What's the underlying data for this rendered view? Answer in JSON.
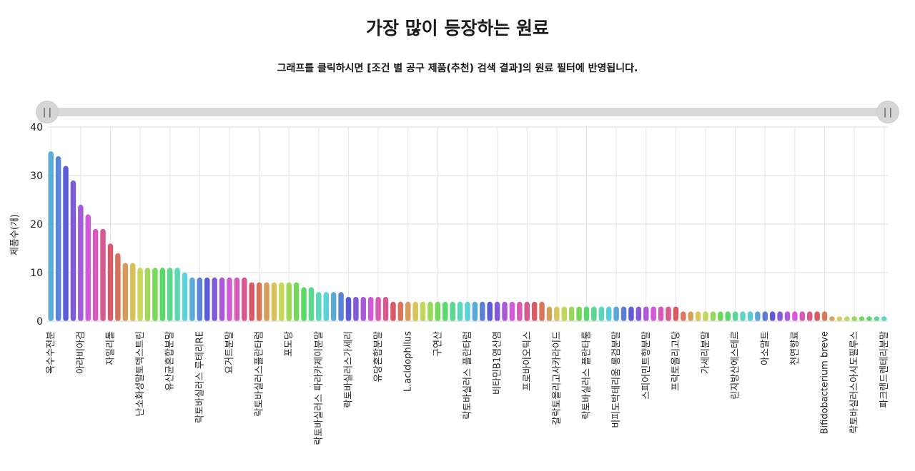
{
  "page": {
    "title": "가장 많이 등장하는 원료",
    "subtitle": "그래프를 클릭하시면 [조건 별 공구 제품(추천) 검색 결과]의 원료 필터에 반영됩니다."
  },
  "slider": {
    "left_handle_label": "||",
    "right_handle_label": "||"
  },
  "chart_data": {
    "type": "bar",
    "title": "가장 많이 등장하는 원료",
    "ylabel": "제품수(개)",
    "xlabel": "",
    "ylim": [
      0,
      40
    ],
    "yticks": [
      0,
      10,
      20,
      30,
      40
    ],
    "grid": true,
    "legend": "none",
    "visible_category_labels": [
      "옥수수전분",
      "아라비아검",
      "자일리톨",
      "난소화성말토덱스트린",
      "유산균혼합분말",
      "락토바실러스 루테리RE",
      "요거트분말",
      "락토바실러스플란타럼",
      "포도당",
      "락토바실러스 파라카제이분말",
      "락토바실러스가세리",
      "유당혼합분말",
      "L.acidophilus",
      "구연산",
      "락토바실러스 플란타럼",
      "비타민B1염산염",
      "프로바이오틱스",
      "갈락토올리고사카라이드",
      "락토바실러스 플란타룸",
      "비피도박테리움 롱검분말",
      "스피어민트향분말",
      "프락토올리고당",
      "가세리분말",
      "린지방산에스테르",
      "아소말트",
      "천연향료",
      "Bifidobacterium breve",
      "락토바실러스아시도필루스",
      "파크랜드렌테리분말"
    ],
    "values": [
      35,
      34,
      32,
      29,
      24,
      22,
      19,
      19,
      16,
      14,
      12,
      12,
      11,
      11,
      11,
      11,
      11,
      11,
      10,
      9,
      9,
      9,
      9,
      9,
      9,
      9,
      9,
      8,
      8,
      8,
      8,
      8,
      8,
      8,
      7,
      7,
      6,
      6,
      6,
      6,
      5,
      5,
      5,
      5,
      5,
      5,
      4,
      4,
      4,
      4,
      4,
      4,
      4,
      4,
      4,
      4,
      4,
      4,
      4,
      4,
      4,
      4,
      4,
      4,
      4,
      4,
      4,
      3,
      3,
      3,
      3,
      3,
      3,
      3,
      3,
      3,
      3,
      3,
      3,
      3,
      3,
      3,
      3,
      3,
      3,
      2,
      2,
      2,
      2,
      2,
      2,
      2,
      2,
      2,
      2,
      2,
      2,
      2,
      2,
      2,
      2,
      2,
      2,
      2,
      2,
      1,
      1,
      1,
      1,
      1,
      1,
      1,
      1
    ]
  }
}
